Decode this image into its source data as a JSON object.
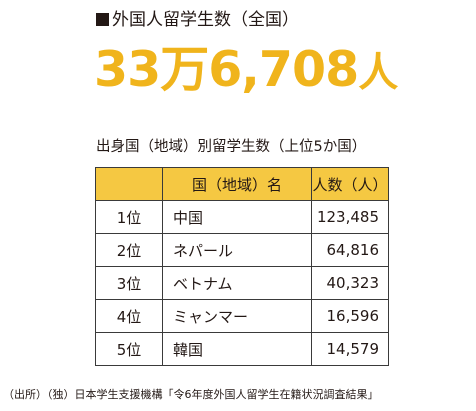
{
  "heading": {
    "text": "外国人留学生数（全国）"
  },
  "total": {
    "number": "33万6,708",
    "unit": "人"
  },
  "subtitle": "出身国（地域）別留学生数（上位5か国）",
  "table": {
    "headers": [
      "",
      "国（地域）名",
      "人数（人）"
    ],
    "rows": [
      {
        "rank": "1位",
        "country": "中国",
        "count": "123,485"
      },
      {
        "rank": "2位",
        "country": "ネパール",
        "count": "64,816"
      },
      {
        "rank": "3位",
        "country": "ベトナム",
        "count": "40,323"
      },
      {
        "rank": "4位",
        "country": "ミャンマー",
        "count": "16,596"
      },
      {
        "rank": "5位",
        "country": "韓国",
        "count": "14,579"
      }
    ]
  },
  "source": "（出所）（独）日本学生支援機構「令6年度外国人留学生在籍状況調査結果」",
  "colors": {
    "accent": "#f0b41c",
    "header_fill": "#f5c842",
    "text": "#231815"
  }
}
